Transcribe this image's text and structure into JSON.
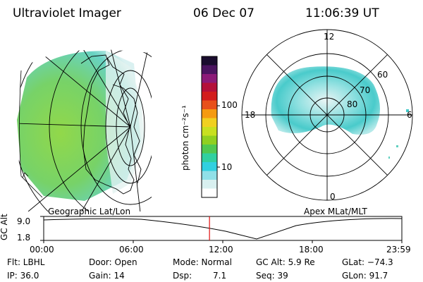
{
  "header": {
    "instrument": "Ultraviolet Imager",
    "date": "06 Dec 07",
    "time": "11:06:39 UT"
  },
  "colorbar": {
    "unit_label": "photon cm⁻²s⁻¹",
    "ticks": [
      "100",
      "10"
    ],
    "colors": [
      "#1a0d2e",
      "#4b1460",
      "#8c1a78",
      "#b4103a",
      "#d21c1c",
      "#e8501a",
      "#f59a10",
      "#f0d020",
      "#c8e020",
      "#90d020",
      "#50c850",
      "#30d0a0",
      "#30d0e0",
      "#90e0e8",
      "#d8f0f0",
      "#ffffff"
    ]
  },
  "left_map": {
    "label": "Geographic Lat/Lon",
    "aurora_color": "#70d060"
  },
  "right_map": {
    "label": "Apex MLat/MLT",
    "mlt_labels": [
      "12",
      "18",
      "6",
      "0"
    ],
    "mlat_labels": [
      "60",
      "70",
      "80"
    ],
    "aurora_color": "#40c8c8"
  },
  "altitude_plot": {
    "ylabel": "GC Alt",
    "yticks": [
      "9.0",
      "1.8"
    ],
    "xticks": [
      "00:00",
      "06:00",
      "12:00",
      "18:00",
      "23:59"
    ],
    "current_time_marker_color": "#e01010",
    "marker_fraction": 0.4629
  },
  "status": {
    "filter": "Flt: LBHL",
    "ip": "IP: 36.0",
    "door": "Door: Open",
    "gain": "Gain: 14",
    "mode": "Mode: Normal",
    "dsp_label": "Dsp:",
    "dsp_value": "7.1",
    "gc_alt": "GC Alt: 5.9 Re",
    "seq": "Seq: 39",
    "glat": "GLat: −74.3",
    "glon": "GLon:  91.7"
  }
}
